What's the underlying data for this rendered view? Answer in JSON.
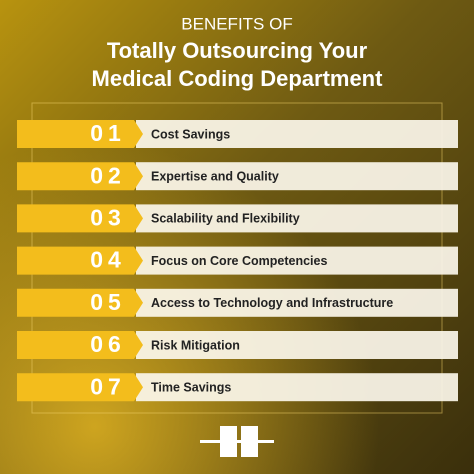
{
  "header": {
    "kicker": "BENEFITS OF",
    "title_lines": [
      "Totally Outsourcing Your",
      "Medical Coding Department"
    ]
  },
  "items": [
    {
      "number": "01",
      "label": "Cost Savings"
    },
    {
      "number": "02",
      "label": "Expertise and Quality"
    },
    {
      "number": "03",
      "label": "Scalability and Flexibility"
    },
    {
      "number": "04",
      "label": "Focus on Core Competencies"
    },
    {
      "number": "05",
      "label": "Access to Technology and Infrastructure"
    },
    {
      "number": "06",
      "label": "Risk Mitigation"
    },
    {
      "number": "07",
      "label": "Time Savings"
    }
  ]
}
